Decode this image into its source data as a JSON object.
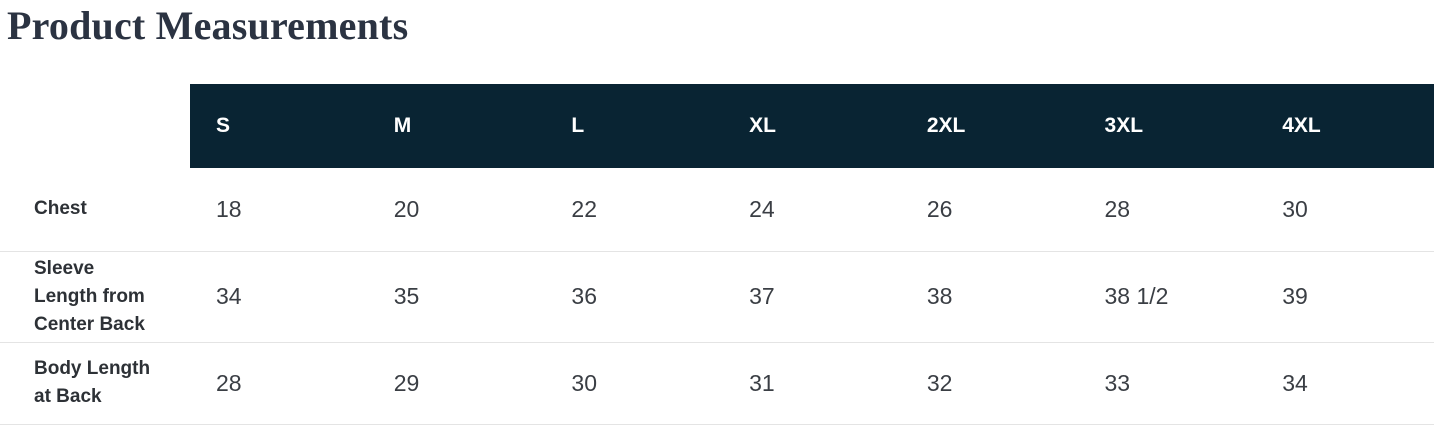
{
  "page": {
    "title": "Product Measurements"
  },
  "table": {
    "columns": [
      "S",
      "M",
      "L",
      "XL",
      "2XL",
      "3XL",
      "4XL"
    ],
    "rows": [
      {
        "label": "Chest",
        "values": [
          "18",
          "20",
          "22",
          "24",
          "26",
          "28",
          "30"
        ]
      },
      {
        "label": "Sleeve\nLength from\nCenter Back",
        "values": [
          "34",
          "35",
          "36",
          "37",
          "38",
          "38 1/2",
          "39"
        ]
      },
      {
        "label": "Body Length\nat Back",
        "values": [
          "28",
          "29",
          "30",
          "31",
          "32",
          "33",
          "34"
        ]
      }
    ]
  },
  "colors": {
    "header_bg": "#092433",
    "header_text": "#ffffff",
    "title_text": "#2b3342",
    "label_text": "#2d3136",
    "value_text": "#3a3e44",
    "divider": "#e4e4e4",
    "page_bg": "#ffffff"
  }
}
